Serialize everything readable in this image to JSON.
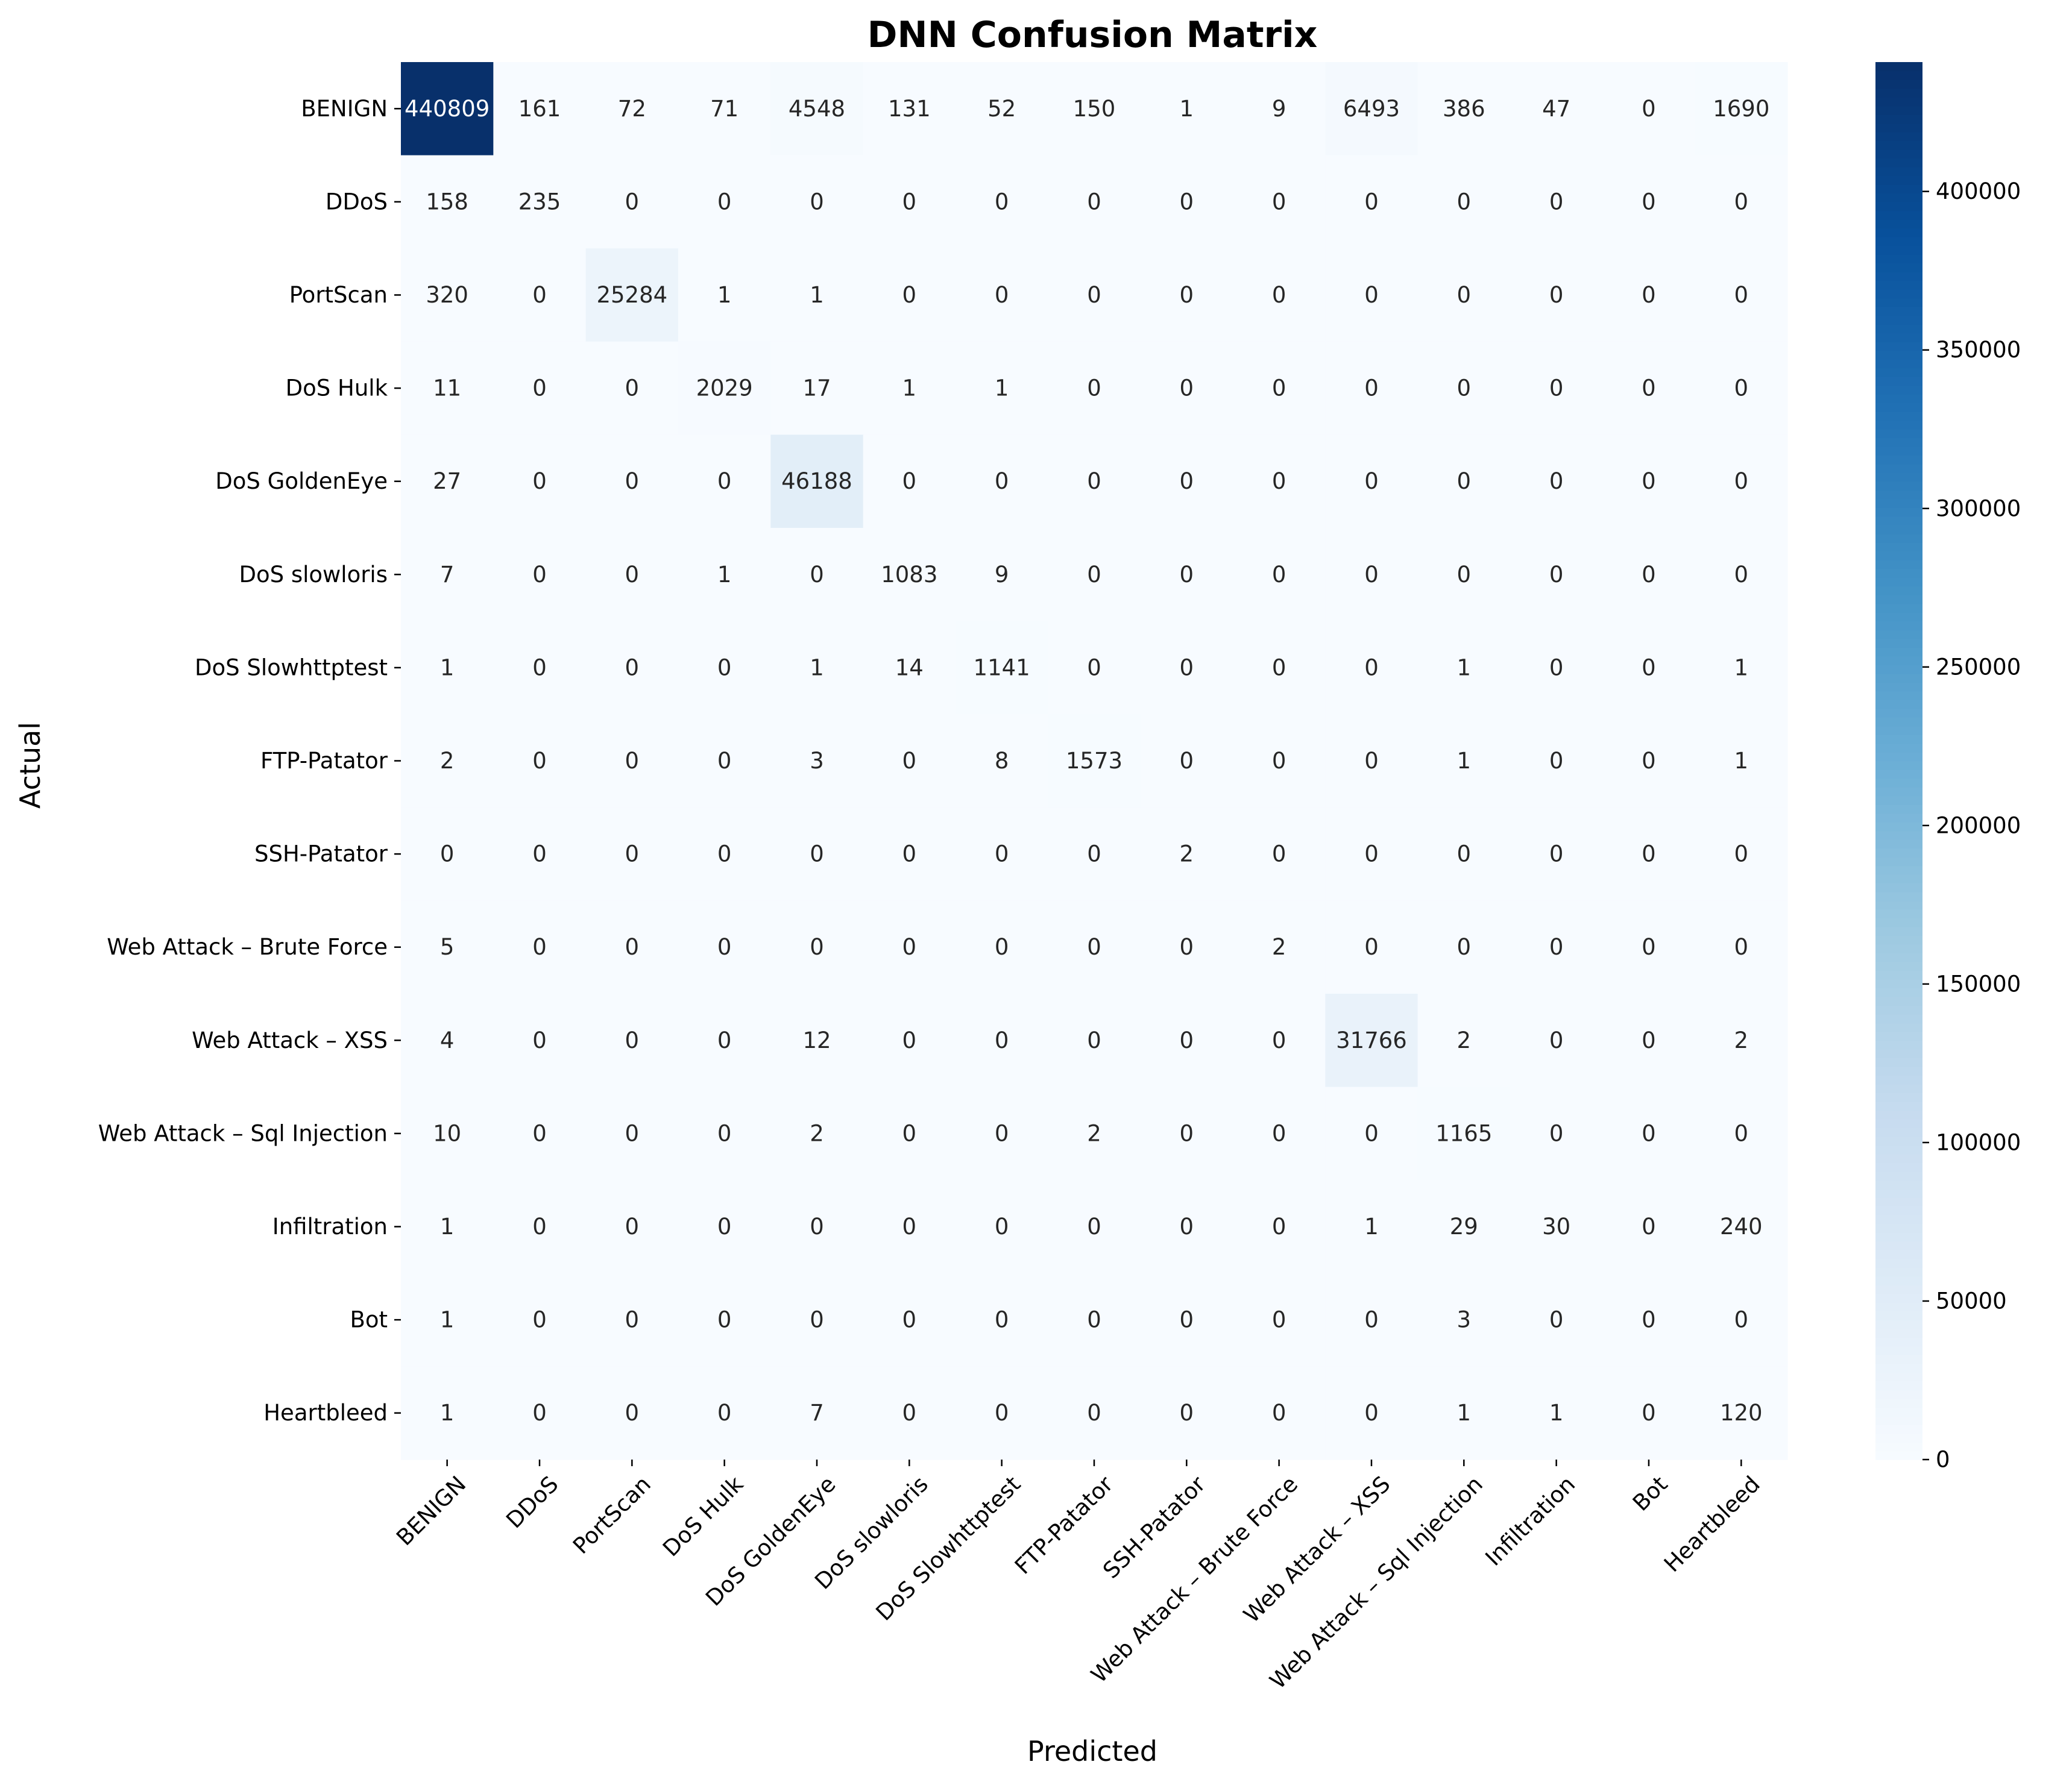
{
  "chart_data": {
    "type": "heatmap",
    "title": "DNN Confusion Matrix",
    "xlabel": "Predicted",
    "ylabel": "Actual",
    "row_labels": [
      "BENIGN",
      "DDoS",
      "PortScan",
      "DoS Hulk",
      "DoS GoldenEye",
      "DoS slowloris",
      "DoS Slowhttptest",
      "FTP-Patator",
      "SSH-Patator",
      "Web Attack – Brute Force",
      "Web Attack – XSS",
      "Web Attack – Sql Injection",
      "Infiltration",
      "Bot",
      "Heartbleed"
    ],
    "col_labels": [
      "BENIGN",
      "DDoS",
      "PortScan",
      "DoS Hulk",
      "DoS GoldenEye",
      "DoS slowloris",
      "DoS Slowhttptest",
      "FTP-Patator",
      "SSH-Patator",
      "Web Attack – Brute Force",
      "Web Attack – XSS",
      "Web Attack – Sql Injection",
      "Infiltration",
      "Bot",
      "Heartbleed"
    ],
    "values": [
      [
        440809,
        161,
        72,
        71,
        4548,
        131,
        52,
        150,
        1,
        9,
        6493,
        386,
        47,
        0,
        1690
      ],
      [
        158,
        235,
        0,
        0,
        0,
        0,
        0,
        0,
        0,
        0,
        0,
        0,
        0,
        0,
        0
      ],
      [
        320,
        0,
        25284,
        1,
        1,
        0,
        0,
        0,
        0,
        0,
        0,
        0,
        0,
        0,
        0
      ],
      [
        11,
        0,
        0,
        2029,
        17,
        1,
        1,
        0,
        0,
        0,
        0,
        0,
        0,
        0,
        0
      ],
      [
        27,
        0,
        0,
        0,
        46188,
        0,
        0,
        0,
        0,
        0,
        0,
        0,
        0,
        0,
        0
      ],
      [
        7,
        0,
        0,
        1,
        0,
        1083,
        9,
        0,
        0,
        0,
        0,
        0,
        0,
        0,
        0
      ],
      [
        1,
        0,
        0,
        0,
        1,
        14,
        1141,
        0,
        0,
        0,
        0,
        1,
        0,
        0,
        1
      ],
      [
        2,
        0,
        0,
        0,
        3,
        0,
        8,
        1573,
        0,
        0,
        0,
        1,
        0,
        0,
        1
      ],
      [
        0,
        0,
        0,
        0,
        0,
        0,
        0,
        0,
        2,
        0,
        0,
        0,
        0,
        0,
        0
      ],
      [
        5,
        0,
        0,
        0,
        0,
        0,
        0,
        0,
        0,
        2,
        0,
        0,
        0,
        0,
        0
      ],
      [
        4,
        0,
        0,
        0,
        12,
        0,
        0,
        0,
        0,
        0,
        31766,
        2,
        0,
        0,
        2
      ],
      [
        10,
        0,
        0,
        0,
        2,
        0,
        0,
        2,
        0,
        0,
        0,
        1165,
        0,
        0,
        0
      ],
      [
        1,
        0,
        0,
        0,
        0,
        0,
        0,
        0,
        0,
        0,
        1,
        29,
        30,
        0,
        240
      ],
      [
        1,
        0,
        0,
        0,
        0,
        0,
        0,
        0,
        0,
        0,
        0,
        3,
        0,
        0,
        0
      ],
      [
        1,
        0,
        0,
        0,
        7,
        0,
        0,
        0,
        0,
        0,
        0,
        1,
        1,
        0,
        120
      ]
    ],
    "colormap": "Blues",
    "vmin": 0,
    "vmax": 440809,
    "colorbar_ticks": [
      0,
      50000,
      100000,
      150000,
      200000,
      250000,
      300000,
      350000,
      400000
    ],
    "colorbar_tick_labels": [
      "0",
      "50000",
      "100000",
      "150000",
      "200000",
      "250000",
      "300000",
      "350000",
      "400000"
    ],
    "colors": {
      "low": "#f7fbff",
      "high": "#08306b",
      "light_text": "#ffffff",
      "dark_text": "#262626"
    }
  }
}
